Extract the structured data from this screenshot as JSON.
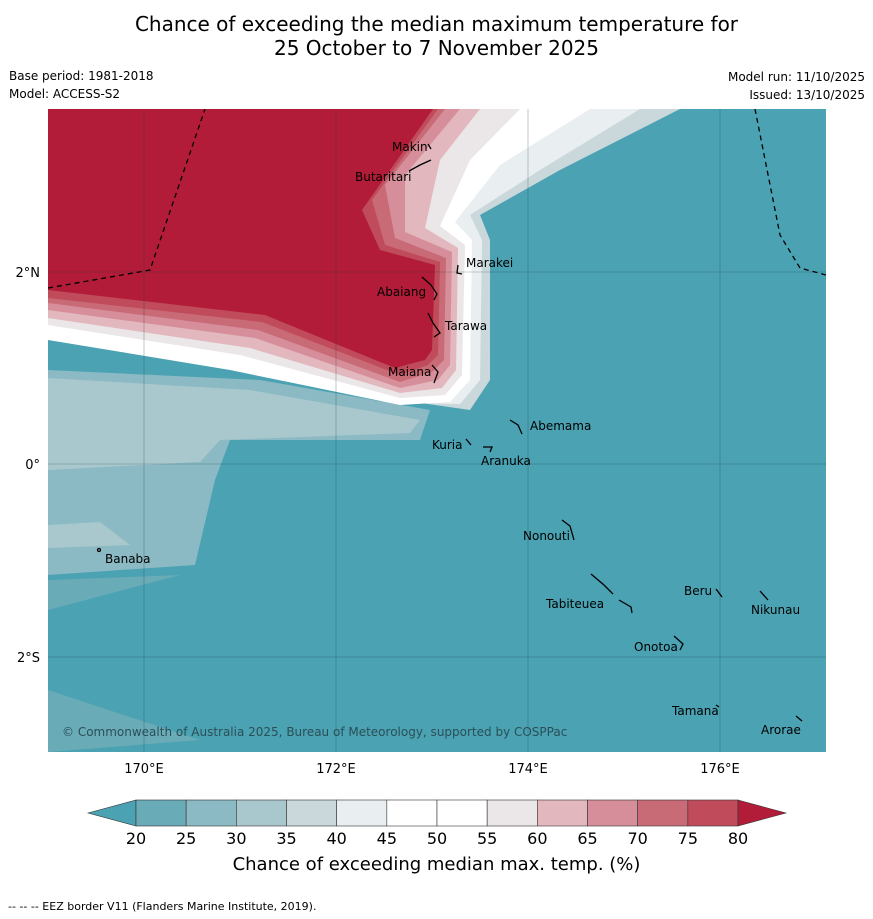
{
  "title_line1": "Chance of exceeding the median maximum temperature for",
  "title_line2": "25 October to 7 November 2025",
  "base_period": "Base period: 1981-2018",
  "model": "Model: ACCESS-S2",
  "model_run": "Model run: 11/10/2025",
  "issued": "Issued: 13/10/2025",
  "copyright": "© Commonwealth of Australia 2025, Bureau of Meteorology, supported by COSPPac",
  "lat_labels": [
    "2°N",
    "0°",
    "2°S"
  ],
  "lon_labels": [
    "170°E",
    "172°E",
    "174°E",
    "176°E"
  ],
  "islands": [
    "Makin",
    "Butaritari",
    "Marakei",
    "Abaiang",
    "Tarawa",
    "Maiana",
    "Abemama",
    "Kuria",
    "Aranuka",
    "Nonouti",
    "Banaba",
    "Beru",
    "Nikunau",
    "Tabiteuea",
    "Onotoa",
    "Tamana",
    "Arorae"
  ],
  "colorbar": {
    "ticks": [
      "20",
      "25",
      "30",
      "35",
      "40",
      "45",
      "50",
      "55",
      "60",
      "65",
      "70",
      "75",
      "80"
    ],
    "colors": [
      "#6aabb8",
      "#8bbac4",
      "#a9c8cd",
      "#cad8dc",
      "#e9eff0",
      "#ffffff",
      "#ffffff",
      "#ebe6e7",
      "#e2b7be",
      "#d68f9a",
      "#c96a77",
      "#bf4b5b"
    ],
    "low_color": "#4aa2b2",
    "high_color": "#b21c38",
    "title": "Chance of exceeding median max. temp. (%)"
  },
  "legend_footer": "--  --  -- EEZ border V11 (Flanders Marine Institute, 2019)."
}
